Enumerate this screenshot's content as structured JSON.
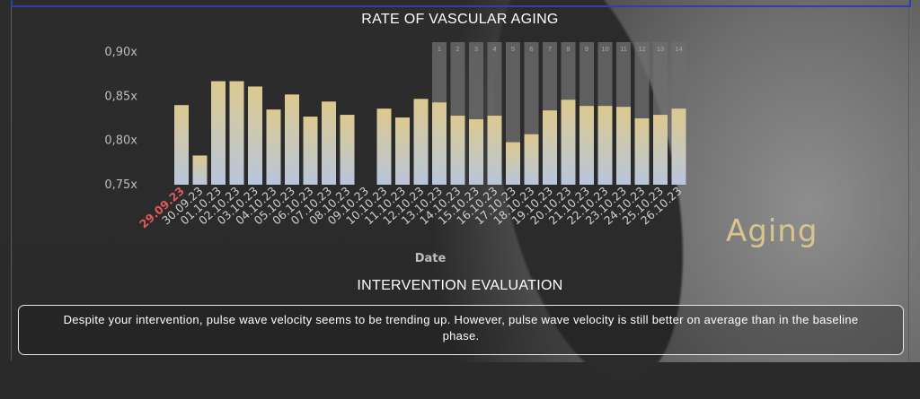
{
  "header": {
    "chart_title": "RATE OF VASCULAR AGING",
    "eval_title": "INTERVENTION EVALUATION"
  },
  "aging_label": "Aging",
  "evaluation_text": "Despite your intervention, pulse wave velocity seems to be trending up. However, pulse wave velocity is still better on average than in the baseline phase.",
  "colors": {
    "bar_top": "#dcc98e",
    "bar_bottom": "#b8c6dc",
    "highlight_date": "#e05a5a",
    "tick_text": "#cfcfcf",
    "intervention_band": "#6e6e6e",
    "aging_text": "#d8c48c"
  },
  "chart_data": {
    "type": "bar",
    "title": "RATE OF VASCULAR AGING",
    "xlabel": "Date",
    "ylabel": "",
    "ylim": [
      0.75,
      0.9
    ],
    "yticks": [
      0.75,
      0.8,
      0.85,
      0.9
    ],
    "ytick_labels": [
      "0,75x",
      "0,80x",
      "0,85x",
      "0,90x"
    ],
    "grid": false,
    "highlighted_category": "29.09.23",
    "categories": [
      "29.09.23",
      "30.09.23",
      "01.10.23",
      "02.10.23",
      "03.10.23",
      "04.10.23",
      "05.10.23",
      "06.10.23",
      "07.10.23",
      "08.10.23",
      "09.10.23",
      "10.10.23",
      "11.10.23",
      "12.10.23",
      "13.10.23",
      "14.10.23",
      "15.10.23",
      "16.10.23",
      "17.10.23",
      "18.10.23",
      "19.10.23",
      "20.10.23",
      "21.10.23",
      "22.10.23",
      "23.10.23",
      "24.10.23",
      "25.10.23",
      "26.10.23"
    ],
    "values": [
      0.84,
      0.783,
      0.867,
      0.867,
      0.861,
      0.835,
      0.852,
      0.827,
      0.844,
      0.829,
      null,
      0.836,
      0.826,
      0.847,
      0.843,
      0.828,
      0.824,
      0.828,
      0.798,
      0.807,
      0.834,
      0.846,
      0.839,
      0.839,
      0.838,
      0.825,
      0.829,
      0.836
    ],
    "intervention_phase": {
      "start_category": "13.10.23",
      "labels": [
        "1",
        "2",
        "3",
        "4",
        "5",
        "6",
        "7",
        "8",
        "9",
        "10",
        "11",
        "12",
        "13",
        "14"
      ]
    }
  }
}
